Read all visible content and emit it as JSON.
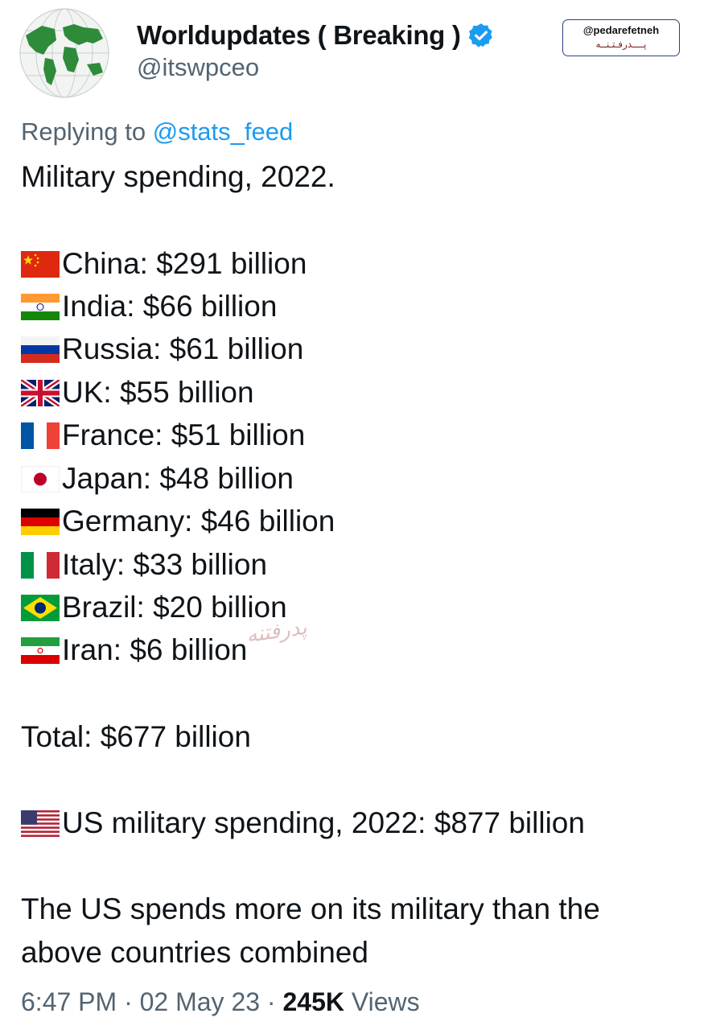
{
  "post": {
    "display_name": "Worldupdates ( Breaking )",
    "handle": "@itswpceo",
    "replying_prefix": "Replying to",
    "replying_handle": "@stats_feed",
    "heading": "Military spending, 2022.",
    "countries": [
      {
        "flag": "china-flag-icon",
        "text": "China: $291 billion"
      },
      {
        "flag": "india-flag-icon",
        "text": "India: $66 billion"
      },
      {
        "flag": "russia-flag-icon",
        "text": "Russia: $61 billion"
      },
      {
        "flag": "uk-flag-icon",
        "text": "UK: $55 billion"
      },
      {
        "flag": "france-flag-icon",
        "text": "France: $51 billion"
      },
      {
        "flag": "japan-flag-icon",
        "text": "Japan: $48 billion"
      },
      {
        "flag": "germany-flag-icon",
        "text": "Germany: $46 billion"
      },
      {
        "flag": "italy-flag-icon",
        "text": "Italy: $33 billion"
      },
      {
        "flag": "brazil-flag-icon",
        "text": "Brazil: $20 billion"
      },
      {
        "flag": "iran-flag-icon",
        "text": "Iran: $6 billion"
      }
    ],
    "total": "Total: $677 billion",
    "us_line": "US military spending, 2022: $877 billion",
    "conclusion_1": "The US spends more on its military than the",
    "conclusion_2": "above countries combined",
    "time": "6:47 PM",
    "date": "02 May 23",
    "views_count": "245K",
    "views_label": "Views"
  },
  "badge": {
    "handle": "@pedarefetneh",
    "sub": "پــــدرفـتـنــه"
  },
  "watermark": "پدرفتنه",
  "colors": {
    "link": "#1d9bf0",
    "secondary": "#536471",
    "text": "#0f1419",
    "verified": "#1d9bf0"
  }
}
